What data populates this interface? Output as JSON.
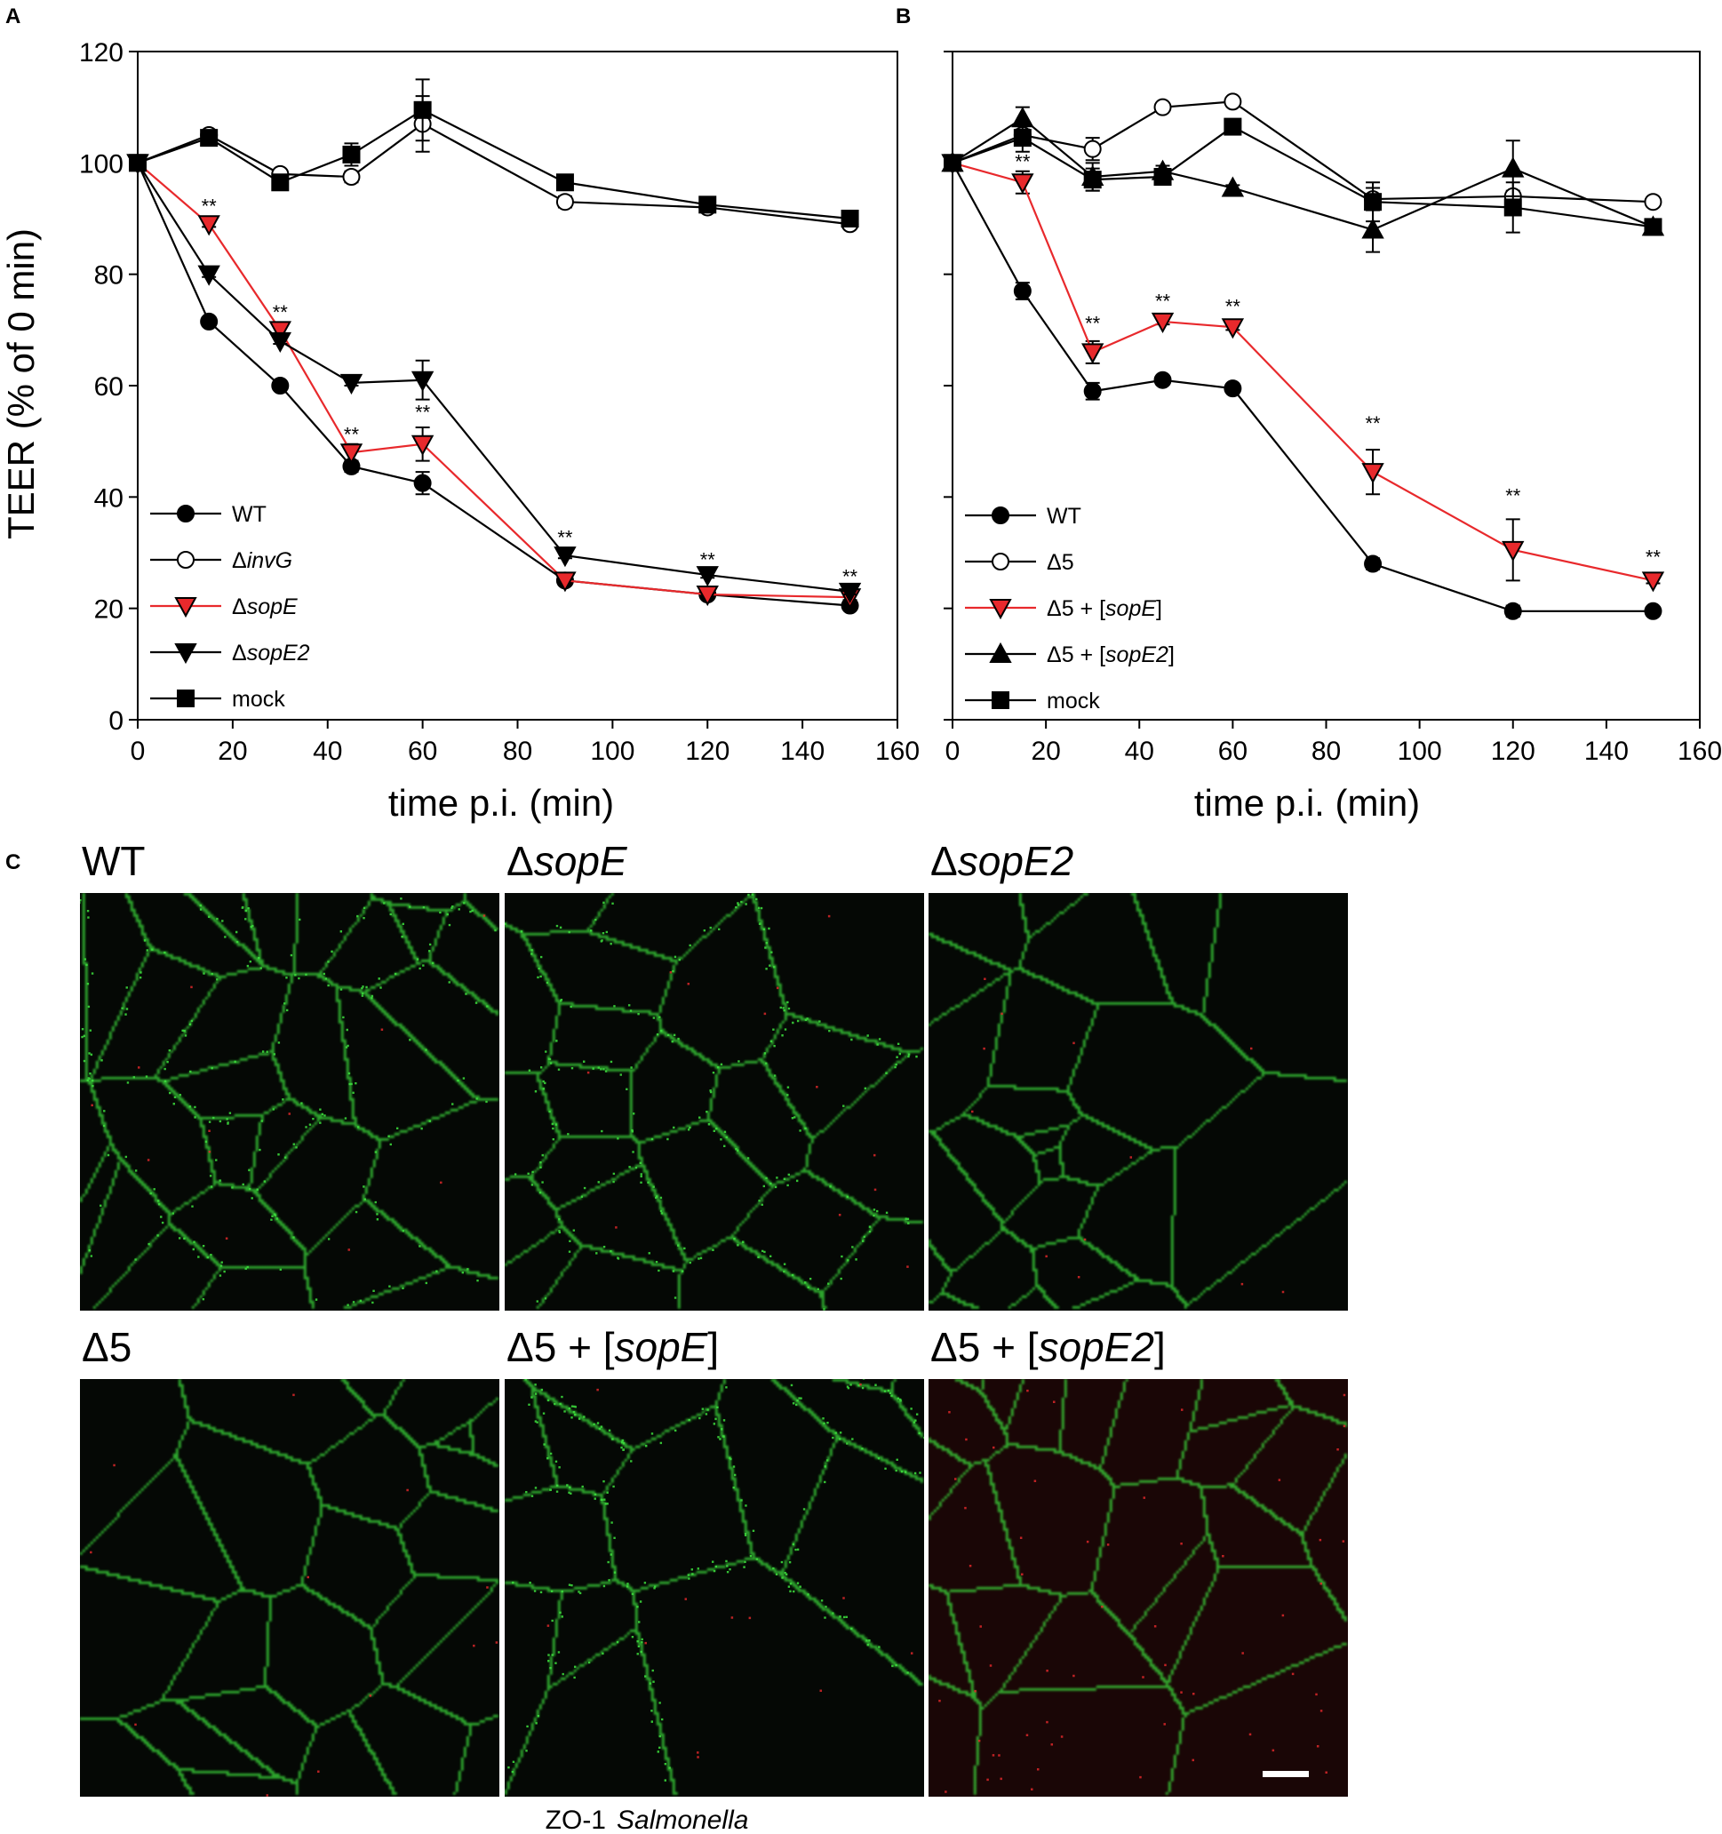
{
  "panel_labels": {
    "A": "A",
    "B": "B",
    "C": "C"
  },
  "chart_data": [
    {
      "type": "line",
      "panel": "A",
      "title": "",
      "xlabel": "time p.i. (min)",
      "ylabel": "TEER (% of 0 min)",
      "xlim": [
        0,
        160
      ],
      "ylim": [
        0,
        120
      ],
      "xticks": [
        "0",
        "20",
        "40",
        "60",
        "80",
        "100",
        "120",
        "140",
        "160"
      ],
      "yticks": [
        "0",
        "20",
        "40",
        "60",
        "80",
        "100",
        "120"
      ],
      "legend_placement": "bottom-left",
      "series": [
        {
          "name": "WT",
          "name_parts": [
            {
              "t": "WT",
              "i": false
            }
          ],
          "marker": "circle",
          "fill": "#000000",
          "line": "#000000",
          "x": [
            0,
            15,
            30,
            45,
            60,
            90,
            120,
            150
          ],
          "y": [
            100,
            71.5,
            60,
            45.5,
            42.5,
            25,
            22.5,
            20.5
          ],
          "err": [
            0,
            0.5,
            0.5,
            1,
            2,
            0.5,
            0.5,
            0.5
          ]
        },
        {
          "name": "ΔinvG",
          "name_parts": [
            {
              "t": "Δ",
              "i": false
            },
            {
              "t": "invG",
              "i": true
            }
          ],
          "marker": "circle",
          "fill": "#ffffff",
          "line": "#000000",
          "x": [
            0,
            15,
            30,
            45,
            60,
            90,
            120,
            150
          ],
          "y": [
            100,
            105,
            98,
            97.5,
            107,
            93,
            92,
            89
          ],
          "err": [
            0,
            0.5,
            0.5,
            1,
            5,
            1,
            0.5,
            0.5
          ]
        },
        {
          "name": "ΔsopE",
          "name_parts": [
            {
              "t": "Δ",
              "i": false
            },
            {
              "t": "sopE",
              "i": true
            }
          ],
          "marker": "triangle-down",
          "fill": "#e8292c",
          "line": "#e8292c",
          "x": [
            0,
            15,
            30,
            45,
            60,
            90,
            120,
            150
          ],
          "y": [
            100,
            89,
            70,
            48,
            49.5,
            25,
            22.5,
            22
          ],
          "err": [
            0,
            0.5,
            1,
            1.5,
            3,
            0.5,
            0.5,
            0.5
          ]
        },
        {
          "name": "ΔsopE2",
          "name_parts": [
            {
              "t": "Δ",
              "i": false
            },
            {
              "t": "sopE2",
              "i": true
            }
          ],
          "marker": "triangle-down",
          "fill": "#000000",
          "line": "#000000",
          "x": [
            0,
            15,
            30,
            45,
            60,
            90,
            120,
            150
          ],
          "y": [
            100,
            80,
            68,
            60.5,
            61,
            29.5,
            26,
            23
          ],
          "err": [
            0,
            0.5,
            0.5,
            0.5,
            3.5,
            0.5,
            0.5,
            0.5
          ]
        },
        {
          "name": "mock",
          "name_parts": [
            {
              "t": "mock",
              "i": false
            }
          ],
          "marker": "square",
          "fill": "#000000",
          "line": "#000000",
          "x": [
            0,
            15,
            30,
            45,
            60,
            90,
            120,
            150
          ],
          "y": [
            100,
            104.5,
            96.5,
            101.5,
            109.5,
            96.5,
            92.5,
            90
          ],
          "err": [
            0,
            1,
            1,
            2,
            5.5,
            1,
            0.5,
            0.5
          ]
        }
      ],
      "annotations": [
        {
          "text": "**",
          "x": 15,
          "y": 91
        },
        {
          "text": "**",
          "x": 30,
          "y": 72
        },
        {
          "text": "**",
          "x": 45,
          "y": 50
        },
        {
          "text": "**",
          "x": 60,
          "y": 54
        },
        {
          "text": "**",
          "x": 90,
          "y": 31.5
        },
        {
          "text": "**",
          "x": 120,
          "y": 27.5
        },
        {
          "text": "**",
          "x": 150,
          "y": 24.5
        }
      ]
    },
    {
      "type": "line",
      "panel": "B",
      "title": "",
      "xlabel": "time p.i. (min)",
      "ylabel": "",
      "xlim": [
        0,
        160
      ],
      "ylim": [
        0,
        120
      ],
      "xticks": [
        "0",
        "20",
        "40",
        "60",
        "80",
        "100",
        "120",
        "140",
        "160"
      ],
      "yticks": [],
      "legend_placement": "bottom-left",
      "series": [
        {
          "name": "WT",
          "name_parts": [
            {
              "t": "WT",
              "i": false
            }
          ],
          "marker": "circle",
          "fill": "#000000",
          "line": "#000000",
          "x": [
            0,
            15,
            30,
            45,
            60,
            90,
            120,
            150
          ],
          "y": [
            100,
            77,
            59,
            61,
            59.5,
            28,
            19.5,
            19.5
          ],
          "err": [
            0,
            1.5,
            1.5,
            0.5,
            0.5,
            1,
            1,
            0.5
          ]
        },
        {
          "name": "Δ5",
          "name_parts": [
            {
              "t": "Δ5",
              "i": false
            }
          ],
          "marker": "circle",
          "fill": "#ffffff",
          "line": "#000000",
          "x": [
            0,
            15,
            30,
            45,
            60,
            90,
            120,
            150
          ],
          "y": [
            100,
            105,
            102.5,
            110,
            111,
            93.5,
            94,
            93
          ],
          "err": [
            0,
            1,
            2,
            0.5,
            0.5,
            2,
            1,
            0.5
          ]
        },
        {
          "name": "Δ5 + [sopE]",
          "name_parts": [
            {
              "t": "Δ5 + [",
              "i": false
            },
            {
              "t": "sopE",
              "i": true
            },
            {
              "t": "]",
              "i": false
            }
          ],
          "marker": "triangle-down",
          "fill": "#e8292c",
          "line": "#e8292c",
          "x": [
            0,
            15,
            30,
            45,
            60,
            90,
            120,
            150
          ],
          "y": [
            100,
            96.5,
            66,
            71.5,
            70.5,
            44.5,
            30.5,
            25
          ],
          "err": [
            0,
            2,
            2,
            0.5,
            0.5,
            4,
            5.5,
            0.5
          ]
        },
        {
          "name": "Δ5 + [sopE2]",
          "name_parts": [
            {
              "t": "Δ5 + [",
              "i": false
            },
            {
              "t": "sopE2",
              "i": true
            },
            {
              "t": "]",
              "i": false
            }
          ],
          "marker": "triangle-up",
          "fill": "#000000",
          "line": "#000000",
          "x": [
            0,
            15,
            30,
            45,
            60,
            90,
            120,
            150
          ],
          "y": [
            100,
            108,
            97.5,
            98.5,
            95.5,
            88,
            99,
            88.5
          ],
          "err": [
            0,
            2,
            2.5,
            1,
            0.5,
            4,
            5,
            0.5
          ]
        },
        {
          "name": "mock",
          "name_parts": [
            {
              "t": "mock",
              "i": false
            }
          ],
          "marker": "square",
          "fill": "#000000",
          "line": "#000000",
          "x": [
            0,
            15,
            30,
            45,
            60,
            90,
            120,
            150
          ],
          "y": [
            100,
            104.5,
            97,
            97.5,
            106.5,
            93,
            92,
            88.5
          ],
          "err": [
            0,
            2.5,
            2,
            1,
            1,
            3.5,
            4.5,
            0.5
          ]
        }
      ],
      "annotations": [
        {
          "text": "**",
          "x": 15,
          "y": 99
        },
        {
          "text": "**",
          "x": 30,
          "y": 70
        },
        {
          "text": "**",
          "x": 45,
          "y": 74
        },
        {
          "text": "**",
          "x": 60,
          "y": 73
        },
        {
          "text": "**",
          "x": 90,
          "y": 52
        },
        {
          "text": "**",
          "x": 120,
          "y": 39
        },
        {
          "text": "**",
          "x": 150,
          "y": 28
        }
      ]
    }
  ],
  "micrographs": {
    "panels": [
      {
        "id": "wt",
        "title_parts": [
          {
            "t": "WT",
            "i": false
          }
        ],
        "seed": 11,
        "cells": 30,
        "punctate": true,
        "red_bg": false
      },
      {
        "id": "sope",
        "title_parts": [
          {
            "t": "Δ",
            "i": false
          },
          {
            "t": "sopE",
            "i": true
          }
        ],
        "seed": 23,
        "cells": 22,
        "punctate": true,
        "red_bg": false
      },
      {
        "id": "sope2",
        "title_parts": [
          {
            "t": "Δ",
            "i": false
          },
          {
            "t": "sopE2",
            "i": true
          }
        ],
        "seed": 37,
        "cells": 26,
        "punctate": false,
        "red_bg": false
      },
      {
        "id": "d5",
        "title_parts": [
          {
            "t": "Δ5",
            "i": false
          }
        ],
        "seed": 41,
        "cells": 24,
        "punctate": false,
        "red_bg": false
      },
      {
        "id": "d5sope",
        "title_parts": [
          {
            "t": "Δ5 + [",
            "i": false
          },
          {
            "t": "sopE",
            "i": true
          },
          {
            "t": "]",
            "i": false
          }
        ],
        "seed": 53,
        "cells": 14,
        "punctate": true,
        "red_bg": false
      },
      {
        "id": "d5sope2",
        "title_parts": [
          {
            "t": "Δ5 + [",
            "i": false
          },
          {
            "t": "sopE2",
            "i": true
          },
          {
            "t": "]",
            "i": false
          }
        ],
        "seed": 67,
        "cells": 24,
        "punctate": false,
        "red_bg": true
      }
    ],
    "caption": [
      {
        "t": "ZO-1",
        "c": "#2aa835",
        "i": false
      },
      {
        "t": "Salmonella",
        "c": "#e8292c",
        "i": true
      }
    ],
    "colors": {
      "zo1": "#3ee23e",
      "salmonella": "#e8292c",
      "yellow_arrow": "#f5ea2a"
    }
  }
}
